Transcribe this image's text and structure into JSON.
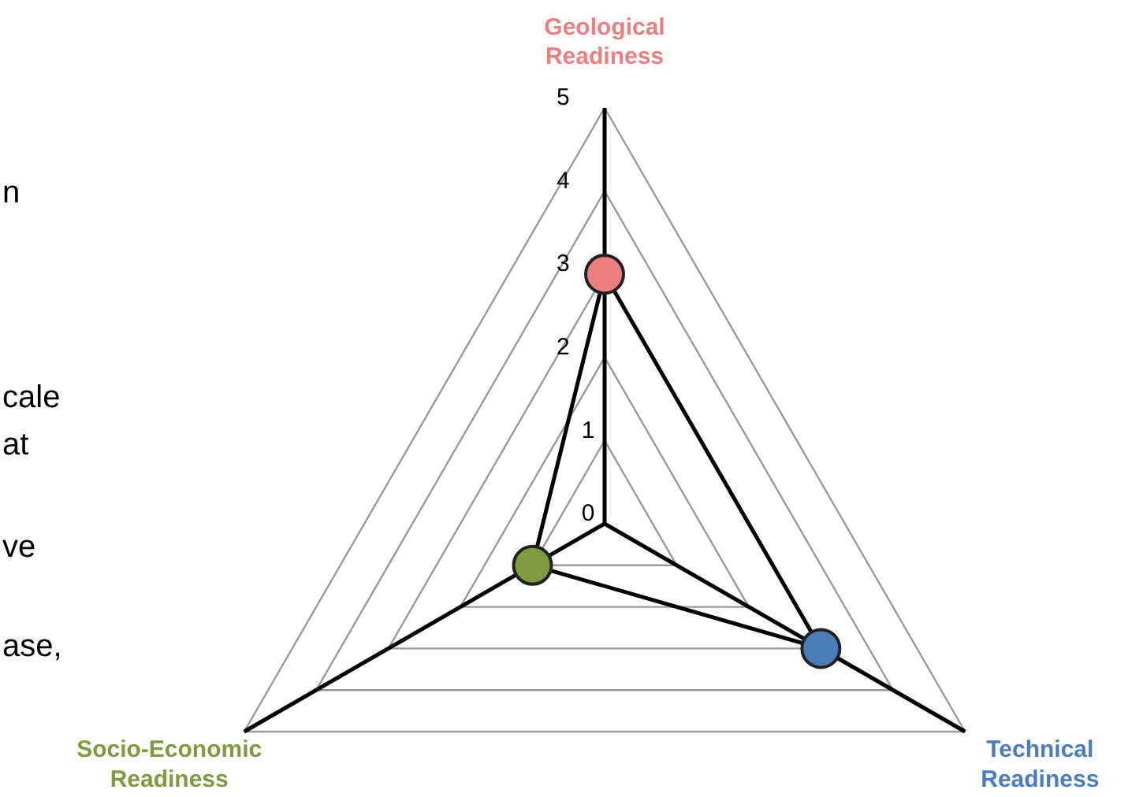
{
  "chart_data": {
    "type": "radar",
    "categories": [
      "Geological Readiness",
      "Technical Readiness",
      "Socio-Economic Readiness"
    ],
    "series": [
      {
        "color": "#000000",
        "colors": [
          "#ee7f7f",
          "#4a7ebb",
          "#7f9a3f"
        ],
        "values": [
          3,
          3,
          1
        ]
      }
    ],
    "ylim": [
      0,
      5
    ],
    "yticks": [
      0,
      1,
      2,
      3,
      4,
      5
    ],
    "grid": true,
    "marker": "circle",
    "annotations": [
      "n",
      "cale",
      "at",
      "ve",
      "ase,"
    ]
  }
}
